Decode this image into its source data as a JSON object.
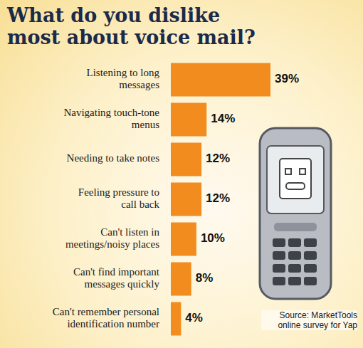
{
  "chart_data": {
    "type": "bar",
    "title": "What do you dislike most about voice mail?",
    "orientation": "horizontal",
    "categories": [
      "Listening to long messages",
      "Navigating touch-tone menus",
      "Needing to take notes",
      "Feeling pressure to call back",
      "Can't listen in meetings/noisy places",
      "Can't find important messages quickly",
      "Can't remember personal identification number"
    ],
    "values": [
      39,
      14,
      12,
      12,
      10,
      8,
      4
    ],
    "value_labels": [
      "39%",
      "14%",
      "12%",
      "12%",
      "10%",
      "8%",
      "4%"
    ],
    "color": "#f28c1e",
    "data_labels": true,
    "tick_labels": "y",
    "source": "Source: MarketTools online survey for Yap"
  }
}
